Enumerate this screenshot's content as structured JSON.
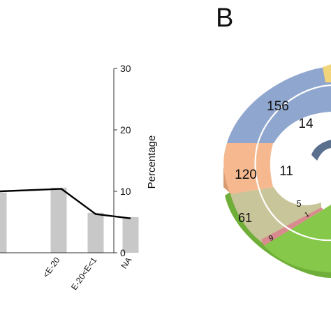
{
  "chart_data": [
    {
      "type": "bar",
      "panel_label": "",
      "categories": [
        "",
        "<E-20",
        "E-20<E<1",
        "NA"
      ],
      "series": [
        {
          "kind": "bar",
          "values": [
            9.8,
            10.6,
            6.5,
            5.8
          ]
        },
        {
          "kind": "line",
          "values": [
            10.0,
            10.4,
            6.3,
            5.6
          ]
        }
      ],
      "xlabel": "",
      "ylabel_right": "Percentage",
      "yticks_right": [
        "0",
        "10",
        "20",
        "30"
      ],
      "ylim": [
        0,
        30
      ],
      "colors": {
        "bar": "#c8c8c8",
        "line": "#000000",
        "axis": "#333333"
      }
    },
    {
      "type": "pie",
      "panel_label": "B",
      "rings": [
        {
          "name": "outer",
          "segments": [
            {
              "label": "156",
              "color": "#8fa6cf"
            },
            {
              "label": "120",
              "color": "#f6b98f"
            },
            {
              "label": "61",
              "color": "#c9c59a"
            },
            {
              "label": "9",
              "color": "#d98a8e"
            },
            {
              "label": "",
              "color": "#86c84a"
            },
            {
              "label": "",
              "color": "#f2d47a"
            }
          ]
        },
        {
          "name": "inner",
          "segments": [
            {
              "label": "14",
              "color": "#8fa6cf"
            },
            {
              "label": "11",
              "color": "#f6b98f"
            },
            {
              "label": "5",
              "color": "#c9c59a"
            },
            {
              "label": "1",
              "color": "#d98a8e"
            }
          ]
        }
      ]
    }
  ]
}
